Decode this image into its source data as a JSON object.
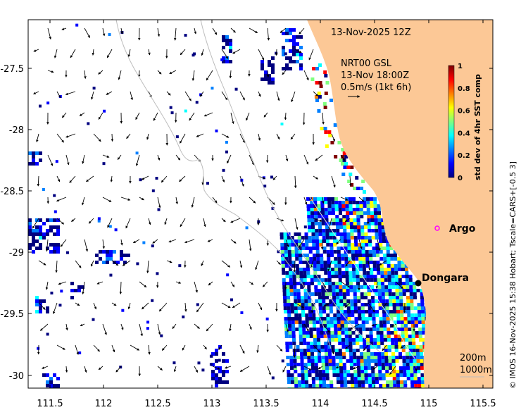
{
  "map": {
    "datetime": "13-Nov-2025 12Z",
    "radar_label": "NRT00 GSL",
    "radar_time": "13-Nov 18:00Z",
    "scale_label": "0.5m/s (1kt 6h)",
    "credit": "© IMOS 16-Nov-2025 15:38 Hobart; Tscale=CARS+[-0.5 3]",
    "x_ticks": [
      "111.5",
      "112",
      "112.5",
      "113",
      "113.5",
      "114",
      "114.5",
      "115",
      "115.5"
    ],
    "y_ticks": [
      "-27.5",
      "-28",
      "-28.5",
      "-29",
      "-29.5",
      "-30"
    ],
    "places": [
      {
        "name": "Argo",
        "lon": 115.05,
        "lat": -28.84
      },
      {
        "name": "Dongara",
        "lon": 114.93,
        "lat": -29.25
      }
    ],
    "bathymetry": [
      "200m",
      "1000m"
    ],
    "land_color": "#fcc896",
    "colorbar": {
      "title": "std dev of 4hr SST comp",
      "ticks": [
        "0",
        "0.2",
        "0.4",
        "0.6",
        "0.8",
        "1"
      ],
      "colors": [
        "#00007f",
        "#0000ff",
        "#007fff",
        "#00ffff",
        "#7fff7f",
        "#ffff00",
        "#ff7f00",
        "#ff0000",
        "#7f0000"
      ]
    }
  }
}
